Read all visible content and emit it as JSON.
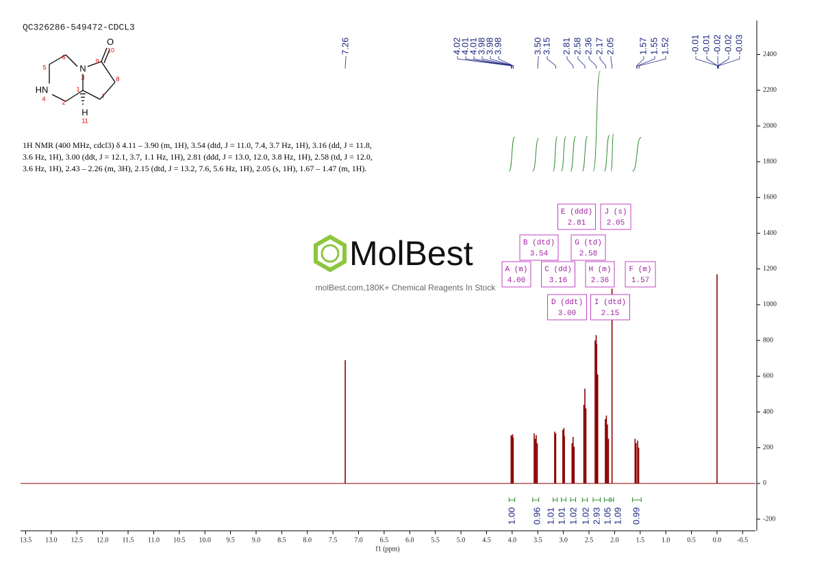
{
  "chart_data": {
    "type": "nmr",
    "title": "QC326286-549472-CDCL3",
    "x_label": "f1 (ppm)",
    "xlim": [
      13.6,
      -0.75
    ],
    "xticks": [
      13.5,
      {
        "value": 13,
        "label": "13.0"
      },
      12.5,
      {
        "value": 12,
        "label": "12.0"
      },
      11.5,
      {
        "value": 11,
        "label": "11.0"
      },
      10.5,
      {
        "value": 10,
        "label": "10.0"
      },
      9.5,
      {
        "value": 9,
        "label": "9.0"
      },
      8.5,
      {
        "value": 8,
        "label": "8.0"
      },
      7.5,
      {
        "value": 7,
        "label": "7.0"
      },
      6.5,
      {
        "value": 6,
        "label": "6.0"
      },
      5.5,
      {
        "value": 5,
        "label": "5.0"
      },
      4.5,
      {
        "value": 4,
        "label": "4.0"
      },
      3.5,
      {
        "value": 3,
        "label": "3.0"
      },
      2.5,
      {
        "value": 2,
        "label": "2.0"
      },
      1.5,
      {
        "value": 1,
        "label": "1.0"
      },
      0.5,
      {
        "value": 0,
        "label": "0.0"
      },
      -0.5
    ],
    "ylim": [
      -265,
      2590
    ],
    "yticks": [
      -200,
      0,
      200,
      400,
      600,
      800,
      1000,
      1200,
      1400,
      1600,
      1800,
      2000,
      2200,
      2400
    ],
    "color": "#8b0000",
    "x": [
      7.26,
      4.02,
      4.01,
      3.99,
      3.98,
      3.57,
      3.55,
      3.53,
      3.51,
      3.17,
      3.15,
      3.01,
      2.99,
      2.98,
      2.83,
      2.81,
      2.79,
      2.6,
      2.58,
      2.56,
      2.38,
      2.36,
      2.35,
      2.33,
      2.18,
      2.16,
      2.14,
      2.12,
      2.05,
      1.6,
      1.58,
      1.55,
      1.53,
      0
    ],
    "values": [
      690,
      270,
      265,
      275,
      255,
      280,
      250,
      270,
      225,
      290,
      280,
      300,
      310,
      265,
      225,
      260,
      205,
      440,
      530,
      420,
      800,
      830,
      780,
      610,
      360,
      380,
      330,
      250,
      1090,
      250,
      225,
      240,
      200,
      1170
    ],
    "peak_labels": [
      7.26,
      4.02,
      4.01,
      4.01,
      3.98,
      3.98,
      3.98,
      {
        "value": 3.5,
        "label": "3.50"
      },
      3.15,
      2.81,
      2.58,
      2.36,
      2.17,
      2.05,
      1.57,
      1.55,
      1.52,
      -0.01,
      -0.01,
      -0.02,
      -0.02,
      -0.03
    ],
    "integral_color": "#2e8b2e",
    "integral_ranges": [
      [
        4.06,
        3.95
      ],
      [
        3.6,
        3.48
      ],
      [
        3.2,
        3.12
      ],
      [
        3.04,
        2.95
      ],
      [
        2.86,
        2.76
      ],
      [
        2.63,
        2.53
      ],
      [
        2.42,
        2.28
      ],
      [
        2.2,
        2.1
      ],
      [
        2.07,
        2.02
      ],
      [
        1.65,
        1.48
      ]
    ],
    "integral_values": [
      {
        "value": 1,
        "label": "1.00"
      },
      0.96,
      1.01,
      1.01,
      1.02,
      1.02,
      2.93,
      1.05,
      1.09,
      0.99
    ],
    "multiplets": [
      {
        "name": "A (m)",
        "shift": {
          "value": 4,
          "label": "4.00"
        }
      },
      {
        "name": "B (dtd)",
        "shift": 3.54
      },
      {
        "name": "C (dd)",
        "shift": 3.16
      },
      {
        "name": "D (ddt)",
        "shift": {
          "value": 3,
          "label": "3.00"
        }
      },
      {
        "name": "E (ddd)",
        "shift": 2.81
      },
      {
        "name": "F (m)",
        "shift": 1.57
      },
      {
        "name": "G (td)",
        "shift": 2.58
      },
      {
        "name": "H (m)",
        "shift": 2.36
      },
      {
        "name": "I (dtd)",
        "shift": 2.15
      },
      {
        "name": "J (s)",
        "shift": 2.05
      }
    ]
  },
  "structure": {
    "atoms": [
      "O",
      "10",
      "N",
      "3",
      "9",
      "8",
      "7",
      "1",
      "5",
      "6",
      "HN",
      "4",
      "2",
      "H",
      "11"
    ]
  },
  "description": [
    "1H NMR (400 MHz, cdcl3) δ 4.11 – 3.90 (m, 1H), 3.54 (dtd, J = 11.0, 7.4, 3.7 Hz, 1H), 3.16 (dd, J = 11.8,",
    "3.6 Hz, 1H), 3.00 (ddt, J = 12.1, 3.7, 1.1 Hz, 1H), 2.81 (ddd, J = 13.0, 12.0, 3.8 Hz, 1H), 2.58 (td, J = 12.0,",
    "3.6 Hz, 1H), 2.43 – 2.26 (m, 3H), 2.15 (dtd, J = 13.2, 7.6, 5.6 Hz, 1H), 2.05 (s, 1H), 1.67 – 1.47 (m, 1H)."
  ],
  "watermark": {
    "brand": "MolBest",
    "tagline": "molBest.com,180K+ Chemical Reagents In Stock"
  }
}
